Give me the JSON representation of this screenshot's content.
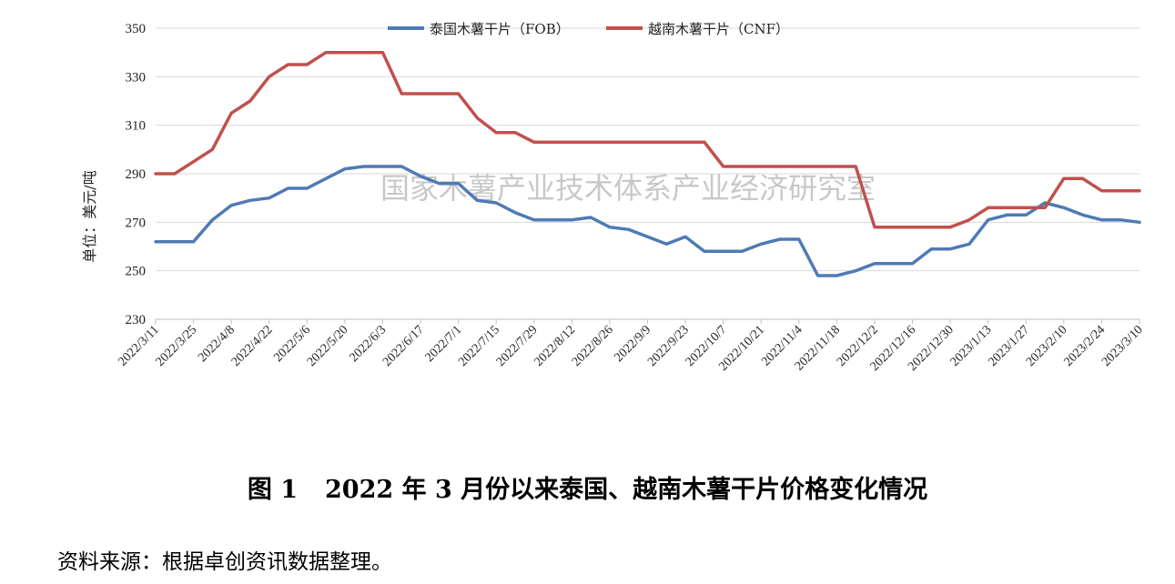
{
  "caption": {
    "label": "图 1",
    "text": "2022 年 3 月份以来泰国、越南木薯干片价格变化情况"
  },
  "source_note": "资料来源：根据卓创资讯数据整理。",
  "watermark": "国家木薯产业技术体系产业经济研究室",
  "chart_data": {
    "type": "line",
    "title": "",
    "ylabel": "单位：美元/吨",
    "xlabel": "",
    "ylim": [
      230,
      350
    ],
    "yticks": [
      230,
      250,
      270,
      290,
      310,
      330,
      350
    ],
    "grid": true,
    "legend_position": "top-center",
    "x_tick_labels": [
      "2022/3/11",
      "2022/3/25",
      "2022/4/8",
      "2022/4/22",
      "2022/5/6",
      "2022/5/20",
      "2022/6/3",
      "2022/6/17",
      "2022/7/1",
      "2022/7/15",
      "2022/7/29",
      "2022/8/12",
      "2022/8/26",
      "2022/9/9",
      "2022/9/23",
      "2022/10/7",
      "2022/10/21",
      "2022/11/4",
      "2022/11/18",
      "2022/12/2",
      "2022/12/16",
      "2022/12/30",
      "2023/1/13",
      "2023/1/27",
      "2023/2/10",
      "2023/2/24",
      "2023/3/10"
    ],
    "x": [
      "2022/3/11",
      "2022/3/18",
      "2022/3/25",
      "2022/4/1",
      "2022/4/8",
      "2022/4/15",
      "2022/4/22",
      "2022/4/29",
      "2022/5/6",
      "2022/5/13",
      "2022/5/20",
      "2022/5/27",
      "2022/6/3",
      "2022/6/10",
      "2022/6/17",
      "2022/6/24",
      "2022/7/1",
      "2022/7/8",
      "2022/7/15",
      "2022/7/22",
      "2022/7/29",
      "2022/8/5",
      "2022/8/12",
      "2022/8/19",
      "2022/8/26",
      "2022/9/2",
      "2022/9/9",
      "2022/9/16",
      "2022/9/23",
      "2022/9/30",
      "2022/10/7",
      "2022/10/14",
      "2022/10/21",
      "2022/10/28",
      "2022/11/4",
      "2022/11/11",
      "2022/11/18",
      "2022/11/25",
      "2022/12/2",
      "2022/12/9",
      "2022/12/16",
      "2022/12/23",
      "2022/12/30",
      "2023/1/6",
      "2023/1/13",
      "2023/1/20",
      "2023/1/27",
      "2023/2/3",
      "2023/2/10",
      "2023/2/17",
      "2023/2/24",
      "2023/3/3",
      "2023/3/10"
    ],
    "series": [
      {
        "name": "泰国木薯干片（FOB）",
        "color": "#4f7ab5",
        "values": [
          262,
          262,
          262,
          271,
          277,
          279,
          280,
          284,
          284,
          288,
          292,
          293,
          293,
          293,
          289,
          286,
          286,
          279,
          278,
          274,
          271,
          271,
          271,
          272,
          268,
          267,
          264,
          261,
          264,
          258,
          258,
          258,
          261,
          263,
          263,
          248,
          248,
          250,
          253,
          253,
          253,
          259,
          259,
          261,
          271,
          273,
          273,
          278,
          276,
          273,
          271,
          271,
          270
        ]
      },
      {
        "name": "越南木薯干片（CNF）",
        "color": "#c0504d",
        "values": [
          290,
          290,
          295,
          300,
          315,
          320,
          330,
          335,
          335,
          340,
          340,
          340,
          340,
          323,
          323,
          323,
          323,
          313,
          307,
          307,
          303,
          303,
          303,
          303,
          303,
          303,
          303,
          303,
          303,
          303,
          293,
          293,
          293,
          293,
          293,
          293,
          293,
          293,
          268,
          268,
          268,
          268,
          268,
          271,
          276,
          276,
          276,
          276,
          288,
          288,
          283,
          283,
          283
        ]
      }
    ]
  }
}
